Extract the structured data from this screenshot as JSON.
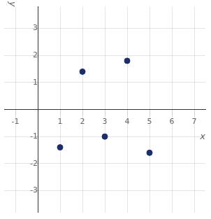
{
  "chart_data": {
    "type": "scatter",
    "x": [
      1,
      2,
      3,
      4,
      5
    ],
    "values": [
      -1.4,
      1.4,
      -1.0,
      1.8,
      -1.6
    ],
    "color": "#1a2e6e",
    "xlim": [
      -1.5,
      7.5
    ],
    "ylim": [
      -3.8,
      3.8
    ],
    "xticks": [
      -1,
      1,
      2,
      3,
      4,
      5,
      6,
      7
    ],
    "yticks": [
      -3,
      -2,
      -1,
      1,
      2,
      3
    ],
    "xlabel": "x",
    "ylabel": "y",
    "grid": true
  }
}
